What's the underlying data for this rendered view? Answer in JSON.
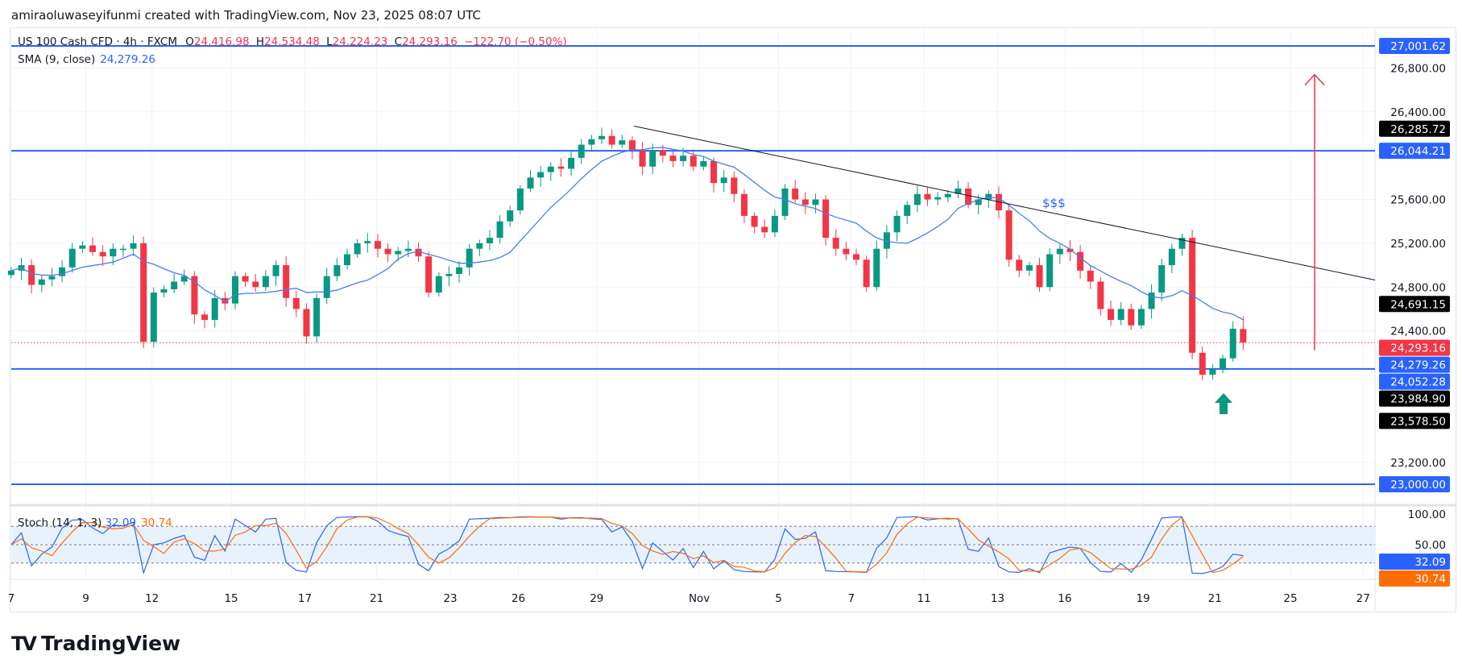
{
  "credit": "amiraoluwaseyifunmi created with TradingView.com, Nov 23, 2025 08:07 UTC",
  "legend": {
    "symbol": "US 100 Cash CFD · 4h · FXCM",
    "o_label": "O",
    "open": "24,416.98",
    "h_label": "H",
    "high": "24,534.48",
    "l_label": "L",
    "low": "24,224.23",
    "c_label": "C",
    "close": "24,293.16",
    "change": "−122.70 (−0.50%)"
  },
  "sma_legend": {
    "label": "SMA (9, close)",
    "value": "24,279.26"
  },
  "stoch_legend": {
    "label": "Stoch (14, 1, 3)",
    "k": "32.09",
    "d": "30.74"
  },
  "annotation_text": "$$$",
  "logo_text": "TradingView",
  "colors": {
    "up": "#089981",
    "down": "#f23645",
    "level": "#2962ff",
    "sma": "#4a7bf7",
    "stoch_k": "#2962ff",
    "stoch_d": "#ff6d00",
    "trendline": "#131722",
    "target_arrow": "#f23645",
    "buy_arrow": "#089981"
  },
  "chart_data": {
    "type": "candlestick",
    "timeframe": "4h",
    "ylim": [
      22900,
      27100
    ],
    "price_ticks": [
      "26,800.00",
      "26,400.00",
      "25,600.00",
      "25,200.00",
      "24,800.00",
      "24,400.00",
      "23,200.00"
    ],
    "price_tick_values": [
      26800,
      26400,
      25600,
      25200,
      24800,
      24400,
      23200
    ],
    "time_ticks": [
      "7",
      "9",
      "12",
      "15",
      "17",
      "21",
      "23",
      "26",
      "29",
      "Nov",
      "5",
      "7",
      "11",
      "13",
      "16",
      "19",
      "21",
      "25",
      "27"
    ],
    "closes": [
      24950,
      25000,
      24820,
      24870,
      24900,
      24980,
      25150,
      25180,
      25120,
      25080,
      25150,
      25150,
      25200,
      24300,
      24750,
      24780,
      24850,
      24900,
      24550,
      24500,
      24700,
      24650,
      24900,
      24850,
      24800,
      24900,
      25000,
      24700,
      24600,
      24350,
      24700,
      24900,
      25000,
      25100,
      25200,
      25220,
      25150,
      25100,
      25130,
      25150,
      25080,
      24750,
      24900,
      24920,
      24980,
      25150,
      25200,
      25250,
      25400,
      25500,
      25700,
      25800,
      25850,
      25900,
      25880,
      25980,
      26100,
      26150,
      26180,
      26100,
      26140,
      26050,
      25900,
      26050,
      26000,
      25950,
      26000,
      25900,
      25950,
      25750,
      25800,
      25650,
      25450,
      25350,
      25300,
      25450,
      25700,
      25600,
      25550,
      25600,
      25250,
      25150,
      25100,
      25050,
      24800,
      25150,
      25300,
      25450,
      25550,
      25650,
      25600,
      25620,
      25650,
      25700,
      25550,
      25600,
      25650,
      25500,
      25050,
      24950,
      25000,
      24800,
      25100,
      25150,
      25120,
      24950,
      24850,
      24600,
      24500,
      24600,
      24450,
      24600,
      24750,
      25000,
      25150,
      25250,
      24200,
      24000,
      24050,
      24150,
      24420,
      24293.16
    ],
    "last_candle": {
      "open": 24416.98,
      "high": 24534.48,
      "low": 24224.23,
      "close": 24293.16
    },
    "horizontal_levels": [
      {
        "value": 27001.62,
        "label": "27,001.62"
      },
      {
        "value": 26044.21,
        "label": "26,044.21"
      },
      {
        "value": 24052.28,
        "label": "24,052.28"
      },
      {
        "value": 23000.0,
        "label": "23,000.00"
      }
    ],
    "axis_markers": [
      {
        "value": 26285.72,
        "label": "26,285.72",
        "color": "#000000"
      },
      {
        "value": 24691.15,
        "label": "24,691.15",
        "color": "#000000"
      },
      {
        "value": 24293.16,
        "label": "24,293.16",
        "color": "#f23645"
      },
      {
        "value": 24279.26,
        "label": "24,279.26",
        "color": "#2962ff"
      },
      {
        "value": 23984.9,
        "label": "23,984.90",
        "color": "#000000"
      },
      {
        "value": 23578.5,
        "label": "23,578.50",
        "color": "#000000"
      }
    ],
    "trendline": {
      "from_price": 26270,
      "to_price": 24865
    },
    "target_arrow": {
      "from_price": 24226,
      "to_price": 26740
    },
    "sma": {
      "period": 9,
      "last": 24279.26
    },
    "stoch": {
      "params": "14, 1, 3",
      "k_last": 32.09,
      "d_last": 30.74,
      "bands": [
        80,
        20
      ],
      "mid": 50,
      "ticks": [
        "100.00",
        "50.00"
      ],
      "ylim": [
        0,
        100
      ]
    }
  }
}
